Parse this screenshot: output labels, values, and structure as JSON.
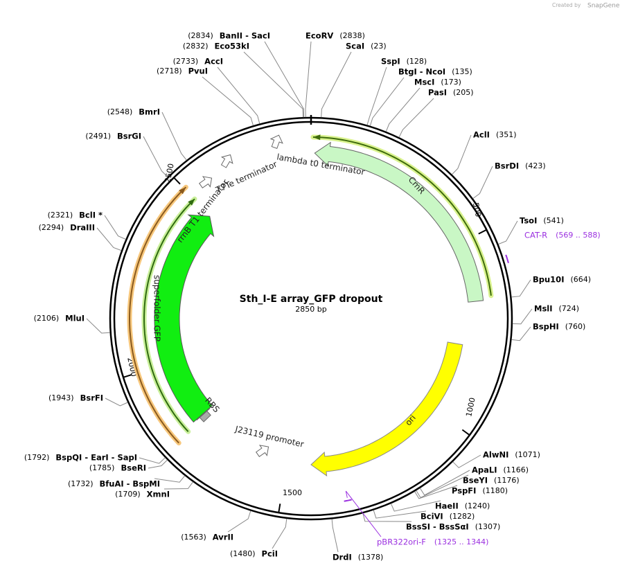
{
  "header": {
    "credit": "Created by",
    "brand": "SnapGene"
  },
  "plasmid": {
    "name": "Sth_I-E array_GFP dropout",
    "size": {
      "value": 2850,
      "label": "2850 bp"
    }
  },
  "ticks": [
    500,
    1000,
    1500,
    2000,
    2500
  ],
  "sites": [
    {
      "name": "ScaI",
      "position": {
        "value": 23,
        "label": "(23)"
      }
    },
    {
      "name": "SspI",
      "position": {
        "value": 128,
        "label": "(128)"
      }
    },
    {
      "name": "BtgI  -  NcoI",
      "position": {
        "value": 135,
        "label": "(135)"
      }
    },
    {
      "name": "MscI",
      "position": {
        "value": 173,
        "label": "(173)"
      }
    },
    {
      "name": "PasI",
      "position": {
        "value": 205,
        "label": "(205)"
      }
    },
    {
      "name": "AclI",
      "position": {
        "value": 351,
        "label": "(351)"
      }
    },
    {
      "name": "BsrDI",
      "position": {
        "value": 423,
        "label": "(423)"
      }
    },
    {
      "name": "TsoI",
      "position": {
        "value": 541,
        "label": "(541)"
      }
    },
    {
      "name": "Bpu10I",
      "position": {
        "value": 664,
        "label": "(664)"
      }
    },
    {
      "name": "MslI",
      "position": {
        "value": 724,
        "label": "(724)"
      }
    },
    {
      "name": "BspHI",
      "position": {
        "value": 760,
        "label": "(760)"
      }
    },
    {
      "name": "AlwNI",
      "position": {
        "value": 1071,
        "label": "(1071)"
      }
    },
    {
      "name": "ApaLI",
      "position": {
        "value": 1166,
        "label": "(1166)"
      }
    },
    {
      "name": "BseYI",
      "position": {
        "value": 1176,
        "label": "(1176)"
      }
    },
    {
      "name": "PspFI",
      "position": {
        "value": 1180,
        "label": "(1180)"
      }
    },
    {
      "name": "HaeII",
      "position": {
        "value": 1240,
        "label": "(1240)"
      }
    },
    {
      "name": "BciVI",
      "position": {
        "value": 1282,
        "label": "(1282)"
      }
    },
    {
      "name": "BssSI  -  BssSαI",
      "position": {
        "value": 1307,
        "label": "(1307)"
      }
    },
    {
      "name": "DrdI",
      "position": {
        "value": 1378,
        "label": "(1378)"
      }
    },
    {
      "name": "PciI",
      "position": {
        "value": 1480,
        "label": "(1480)"
      }
    },
    {
      "name": "AvrII",
      "position": {
        "value": 1563,
        "label": "(1563)"
      }
    },
    {
      "name": "XmnI",
      "position": {
        "value": 1709,
        "label": "(1709)"
      }
    },
    {
      "name": "BfuAI  -  BspMI",
      "position": {
        "value": 1732,
        "label": "(1732)"
      }
    },
    {
      "name": "BseRI",
      "position": {
        "value": 1785,
        "label": "(1785)"
      }
    },
    {
      "name": "BspQI  -  EarI  -  SapI",
      "position": {
        "value": 1792,
        "label": "(1792)"
      }
    },
    {
      "name": "BsrFI",
      "position": {
        "value": 1943,
        "label": "(1943)"
      }
    },
    {
      "name": "MluI",
      "position": {
        "value": 2106,
        "label": "(2106)"
      }
    },
    {
      "name": "DraIII",
      "position": {
        "value": 2294,
        "label": "(2294)"
      }
    },
    {
      "name": "BclI *",
      "position": {
        "value": 2321,
        "label": "(2321)"
      }
    },
    {
      "name": "BsrGI",
      "position": {
        "value": 2491,
        "label": "(2491)"
      }
    },
    {
      "name": "BmrI",
      "position": {
        "value": 2548,
        "label": "(2548)"
      }
    },
    {
      "name": "PvuI",
      "position": {
        "value": 2718,
        "label": "(2718)"
      }
    },
    {
      "name": "AccI",
      "position": {
        "value": 2733,
        "label": "(2733)"
      }
    },
    {
      "name": "Eco53kI",
      "position": {
        "value": 2832,
        "label": "(2832)"
      }
    },
    {
      "name": "BanII  -  SacI",
      "position": {
        "value": 2834,
        "label": "(2834)"
      }
    },
    {
      "name": "EcoRV",
      "position": {
        "value": 2838,
        "label": "(2838)"
      }
    }
  ],
  "primers": [
    {
      "name": "CAT-R",
      "range": {
        "start": 569,
        "end": 588,
        "label": "(569 .. 588)"
      }
    },
    {
      "name": "pBR322ori-F",
      "range": {
        "start": 1325,
        "end": 1344,
        "label": "(1325 .. 1344)"
      }
    }
  ],
  "features": [
    {
      "name": "CmR"
    },
    {
      "name": "ori"
    },
    {
      "name": "superfolder GFP"
    },
    {
      "name": "RBS"
    },
    {
      "name": "lambda t0 terminator"
    },
    {
      "name": "T7Te terminator"
    },
    {
      "name": "rrnB T1 terminator"
    },
    {
      "name": "J23119 promoter"
    }
  ]
}
